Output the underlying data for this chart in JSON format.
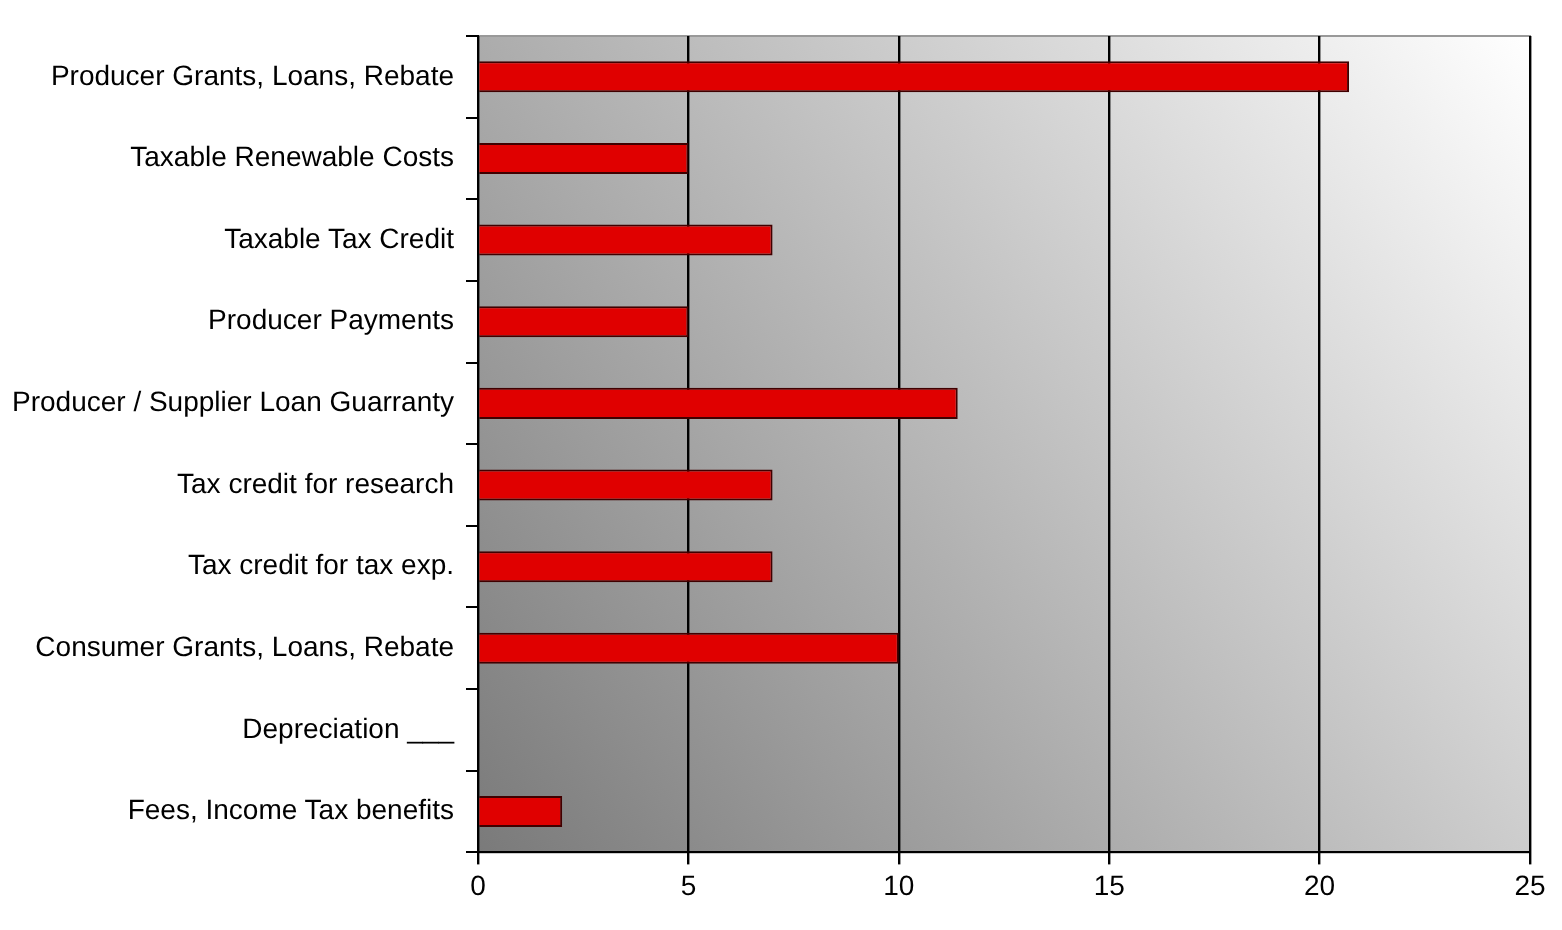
{
  "chart_data": {
    "type": "bar",
    "orientation": "horizontal",
    "categories": [
      "Producer Grants, Loans, Rebate",
      "Taxable Renewable Costs",
      "Taxable Tax Credit",
      "Producer Payments",
      "Producer / Supplier Loan Guarranty",
      "Tax credit for research",
      "Tax credit for tax exp.",
      "Consumer Grants, Loans, Rebate",
      "Depreciation ___",
      "Fees, Income Tax benefits"
    ],
    "values": [
      20.7,
      5,
      7,
      5,
      11.4,
      7,
      7,
      10,
      0,
      2
    ],
    "color": "#e00000",
    "xlim": [
      0,
      25
    ],
    "xticks": [
      0,
      5,
      10,
      15,
      20,
      25
    ],
    "grid": "x",
    "legend": false
  }
}
